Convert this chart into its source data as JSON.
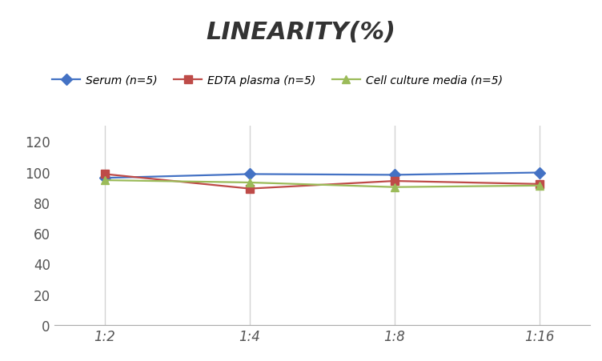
{
  "title": "LINEARITY(%)",
  "x_labels": [
    "1:2",
    "1:4",
    "1:8",
    "1:16"
  ],
  "x_positions": [
    0,
    1,
    2,
    3
  ],
  "series": [
    {
      "label": "Serum (n=5)",
      "values": [
        96,
        98.5,
        98,
        99.5
      ],
      "color": "#4472C4",
      "marker": "D",
      "marker_size": 7,
      "linewidth": 1.6
    },
    {
      "label": "EDTA plasma (n=5)",
      "values": [
        98.5,
        89,
        94,
        92
      ],
      "color": "#BE4B48",
      "marker": "s",
      "marker_size": 7,
      "linewidth": 1.6
    },
    {
      "label": "Cell culture media (n=5)",
      "values": [
        94.5,
        93,
        90,
        91
      ],
      "color": "#9BBB59",
      "marker": "^",
      "marker_size": 7,
      "linewidth": 1.6
    }
  ],
  "ylim": [
    0,
    130
  ],
  "yticks": [
    0,
    20,
    40,
    60,
    80,
    100,
    120
  ],
  "background_color": "#ffffff",
  "grid_color": "#d3d3d3",
  "title_fontsize": 22,
  "legend_fontsize": 10,
  "tick_fontsize": 12
}
